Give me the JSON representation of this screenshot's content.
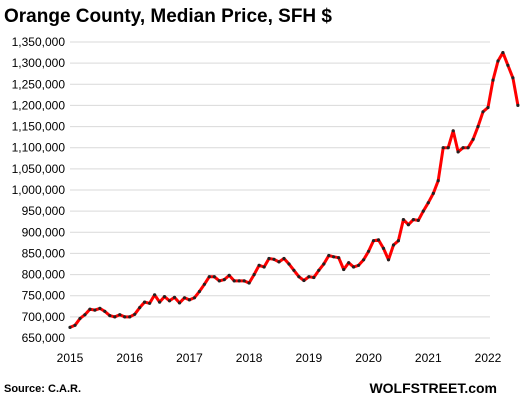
{
  "chart_data": {
    "type": "line",
    "title": "Orange County, Median Price, SFH $",
    "source": "Source: C.A.R.",
    "brand": "WOLFSTREET.com",
    "xlabel": "",
    "ylabel": "",
    "ylim": [
      650000,
      1350000
    ],
    "xlim": [
      2015,
      2022.67
    ],
    "grid": "horizontal",
    "ytick_values": [
      650000,
      700000,
      750000,
      800000,
      850000,
      900000,
      950000,
      1000000,
      1050000,
      1100000,
      1150000,
      1200000,
      1250000,
      1300000,
      1350000
    ],
    "ytick_labels": [
      "650,000",
      "700,000",
      "750,000",
      "800,000",
      "850,000",
      "900,000",
      "950,000",
      "1,000,000",
      "1,050,000",
      "1,100,000",
      "1,150,000",
      "1,200,000",
      "1,250,000",
      "1,300,000",
      "1,350,000"
    ],
    "xtick_values": [
      2015,
      2016,
      2017,
      2018,
      2019,
      2020,
      2021,
      2022
    ],
    "xtick_labels": [
      "2015",
      "2016",
      "2017",
      "2018",
      "2019",
      "2020",
      "2021",
      "2022"
    ],
    "colors": {
      "line": "#ff0000",
      "marker": "#222222",
      "grid": "#d9d9d9"
    },
    "series": [
      {
        "x_start": "2015-01",
        "x_step": "month",
        "values": [
          675000,
          680000,
          696000,
          705000,
          718000,
          716000,
          720000,
          713000,
          703000,
          700000,
          705000,
          700000,
          700000,
          706000,
          722000,
          735000,
          732000,
          752000,
          735000,
          748000,
          738000,
          746000,
          733000,
          745000,
          740000,
          745000,
          760000,
          777000,
          795000,
          795000,
          785000,
          788000,
          798000,
          785000,
          785000,
          785000,
          780000,
          800000,
          822000,
          818000,
          838000,
          836000,
          830000,
          838000,
          825000,
          810000,
          795000,
          786000,
          795000,
          793000,
          810000,
          825000,
          845000,
          842000,
          840000,
          812000,
          828000,
          818000,
          822000,
          835000,
          855000,
          880000,
          882000,
          862000,
          835000,
          870000,
          880000,
          930000,
          918000,
          930000,
          928000,
          950000,
          970000,
          992000,
          1022000,
          1100000,
          1100000,
          1140000,
          1090000,
          1100000,
          1100000,
          1120000,
          1150000,
          1185000,
          1195000,
          1260000,
          1305000,
          1325000,
          1295000,
          1265000,
          1200000
        ]
      }
    ]
  }
}
